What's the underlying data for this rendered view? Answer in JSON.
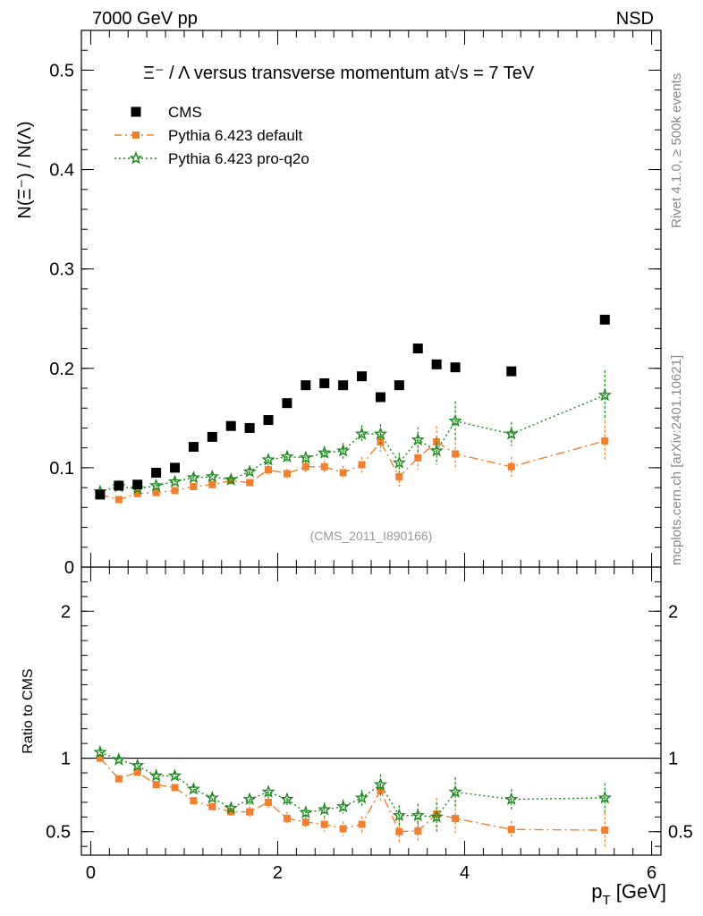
{
  "header": {
    "left": "7000 GeV pp",
    "right": "NSD"
  },
  "side_labels": {
    "rivet": "Rivet 4.1.0, ≥ 500k events",
    "mcplots": "mcplots.cern.ch [arXiv:2401.10621]"
  },
  "chart_data": [
    {
      "panel": "main",
      "type": "scatter",
      "title_left": "Ξ⁻ / Λ versus transverse momentum at",
      "title_sqrt": "√s",
      "title_right": " = 7 TeV",
      "ylabel": "N(Ξ⁻) / N(Λ)",
      "watermark": "(CMS_2011_I890166)",
      "xlim": [
        -0.1,
        6.1
      ],
      "ylim": [
        0,
        0.54
      ],
      "y_ticks": [
        {
          "v": 0.1,
          "t": "0.1"
        },
        {
          "v": 0.2,
          "t": "0.2"
        },
        {
          "v": 0.3,
          "t": "0.3"
        },
        {
          "v": 0.4,
          "t": "0.4"
        },
        {
          "v": 0.5,
          "t": "0.5"
        },
        {
          "v": 0.0,
          "t": "0"
        }
      ],
      "legend": [
        {
          "label": "CMS",
          "color": "#000000",
          "marker": "square"
        },
        {
          "label": "Pythia 6.423 default",
          "color": "#f07f2f",
          "marker": "square"
        },
        {
          "label": "Pythia 6.423 pro-q2o",
          "color": "#1a8a1a",
          "marker": "star"
        }
      ],
      "series": [
        {
          "name": "CMS",
          "color": "#000000",
          "marker": "square",
          "x": [
            0.1,
            0.3,
            0.5,
            0.7,
            0.9,
            1.1,
            1.3,
            1.5,
            1.7,
            1.9,
            2.1,
            2.3,
            2.5,
            2.7,
            2.9,
            3.1,
            3.3,
            3.5,
            3.7,
            3.9,
            4.5,
            5.5
          ],
          "y": [
            0.073,
            0.082,
            0.083,
            0.095,
            0.1,
            0.121,
            0.131,
            0.142,
            0.14,
            0.148,
            0.165,
            0.183,
            0.185,
            0.183,
            0.192,
            0.171,
            0.183,
            0.22,
            0.204,
            0.201,
            0.197,
            0.249
          ],
          "err": [
            0,
            0,
            0,
            0,
            0,
            0,
            0,
            0,
            0,
            0,
            0,
            0,
            0,
            0,
            0,
            0,
            0,
            0,
            0,
            0,
            0,
            0
          ]
        },
        {
          "name": "Pythia 6.423 default",
          "color": "#f07f2f",
          "marker": "square",
          "x": [
            0.1,
            0.3,
            0.5,
            0.7,
            0.9,
            1.1,
            1.3,
            1.5,
            1.7,
            1.9,
            2.1,
            2.3,
            2.5,
            2.7,
            2.9,
            3.1,
            3.3,
            3.5,
            3.7,
            3.9,
            4.5,
            5.5
          ],
          "y": [
            0.073,
            0.068,
            0.074,
            0.075,
            0.077,
            0.081,
            0.083,
            0.087,
            0.085,
            0.098,
            0.094,
            0.101,
            0.101,
            0.095,
            0.103,
            0.126,
            0.091,
            0.11,
            0.126,
            0.114,
            0.101,
            0.127
          ],
          "err": [
            0.002,
            0.002,
            0.002,
            0.002,
            0.002,
            0.003,
            0.003,
            0.004,
            0.004,
            0.005,
            0.005,
            0.006,
            0.006,
            0.007,
            0.008,
            0.01,
            0.01,
            0.012,
            0.016,
            0.016,
            0.01,
            0.02
          ]
        },
        {
          "name": "Pythia 6.423 pro-q2o",
          "color": "#1a8a1a",
          "marker": "star",
          "x": [
            0.1,
            0.3,
            0.5,
            0.7,
            0.9,
            1.1,
            1.3,
            1.5,
            1.7,
            1.9,
            2.1,
            2.3,
            2.5,
            2.7,
            2.9,
            3.1,
            3.3,
            3.5,
            3.7,
            3.9,
            4.5,
            5.5
          ],
          "y": [
            0.076,
            0.081,
            0.079,
            0.082,
            0.086,
            0.09,
            0.091,
            0.088,
            0.096,
            0.108,
            0.111,
            0.11,
            0.115,
            0.117,
            0.134,
            0.134,
            0.105,
            0.128,
            0.117,
            0.147,
            0.134,
            0.173
          ],
          "err": [
            0.002,
            0.002,
            0.002,
            0.002,
            0.003,
            0.003,
            0.003,
            0.004,
            0.004,
            0.005,
            0.005,
            0.006,
            0.007,
            0.008,
            0.009,
            0.01,
            0.01,
            0.013,
            0.014,
            0.02,
            0.012,
            0.025
          ]
        }
      ]
    },
    {
      "panel": "ratio",
      "type": "scatter",
      "ylabel": "Ratio to CMS",
      "xlabel_main": "p",
      "xlabel_sub": "T",
      "xlabel_unit": " [GeV]",
      "xlim": [
        -0.1,
        6.1
      ],
      "ylim": [
        0.34,
        2.3
      ],
      "x_ticks": [
        {
          "v": 0,
          "t": "0"
        },
        {
          "v": 2,
          "t": "2"
        },
        {
          "v": 4,
          "t": "4"
        },
        {
          "v": 6,
          "t": "6"
        }
      ],
      "y_ticks": [
        {
          "v": 0.5,
          "t": "0.5"
        },
        {
          "v": 1,
          "t": "1"
        },
        {
          "v": 2,
          "t": "2"
        }
      ],
      "reference_line": 1,
      "series": [
        {
          "name": "Pythia 6.423 default",
          "color": "#f07f2f",
          "marker": "square",
          "x": [
            0.1,
            0.3,
            0.5,
            0.7,
            0.9,
            1.1,
            1.3,
            1.5,
            1.7,
            1.9,
            2.1,
            2.3,
            2.5,
            2.7,
            2.9,
            3.1,
            3.3,
            3.5,
            3.7,
            3.9,
            4.5,
            5.5
          ],
          "y": [
            1.0,
            0.86,
            0.905,
            0.82,
            0.8,
            0.71,
            0.67,
            0.635,
            0.635,
            0.7,
            0.59,
            0.565,
            0.55,
            0.52,
            0.55,
            0.78,
            0.5,
            0.505,
            0.62,
            0.59,
            0.515,
            0.51
          ],
          "err": [
            0.02,
            0.02,
            0.02,
            0.02,
            0.02,
            0.025,
            0.025,
            0.03,
            0.035,
            0.04,
            0.045,
            0.045,
            0.05,
            0.05,
            0.055,
            0.07,
            0.07,
            0.075,
            0.11,
            0.1,
            0.06,
            0.12
          ]
        },
        {
          "name": "Pythia 6.423 pro-q2o",
          "color": "#1a8a1a",
          "marker": "star",
          "x": [
            0.1,
            0.3,
            0.5,
            0.7,
            0.9,
            1.1,
            1.3,
            1.5,
            1.7,
            1.9,
            2.1,
            2.3,
            2.5,
            2.7,
            2.9,
            3.1,
            3.3,
            3.5,
            3.7,
            3.9,
            4.5,
            5.5
          ],
          "y": [
            1.04,
            0.99,
            0.95,
            0.88,
            0.88,
            0.79,
            0.73,
            0.66,
            0.72,
            0.77,
            0.72,
            0.63,
            0.65,
            0.67,
            0.73,
            0.82,
            0.61,
            0.61,
            0.6,
            0.77,
            0.72,
            0.73
          ],
          "err": [
            0.02,
            0.02,
            0.02,
            0.025,
            0.025,
            0.025,
            0.03,
            0.03,
            0.035,
            0.04,
            0.04,
            0.045,
            0.05,
            0.05,
            0.055,
            0.07,
            0.07,
            0.08,
            0.1,
            0.1,
            0.07,
            0.1
          ]
        }
      ]
    }
  ]
}
